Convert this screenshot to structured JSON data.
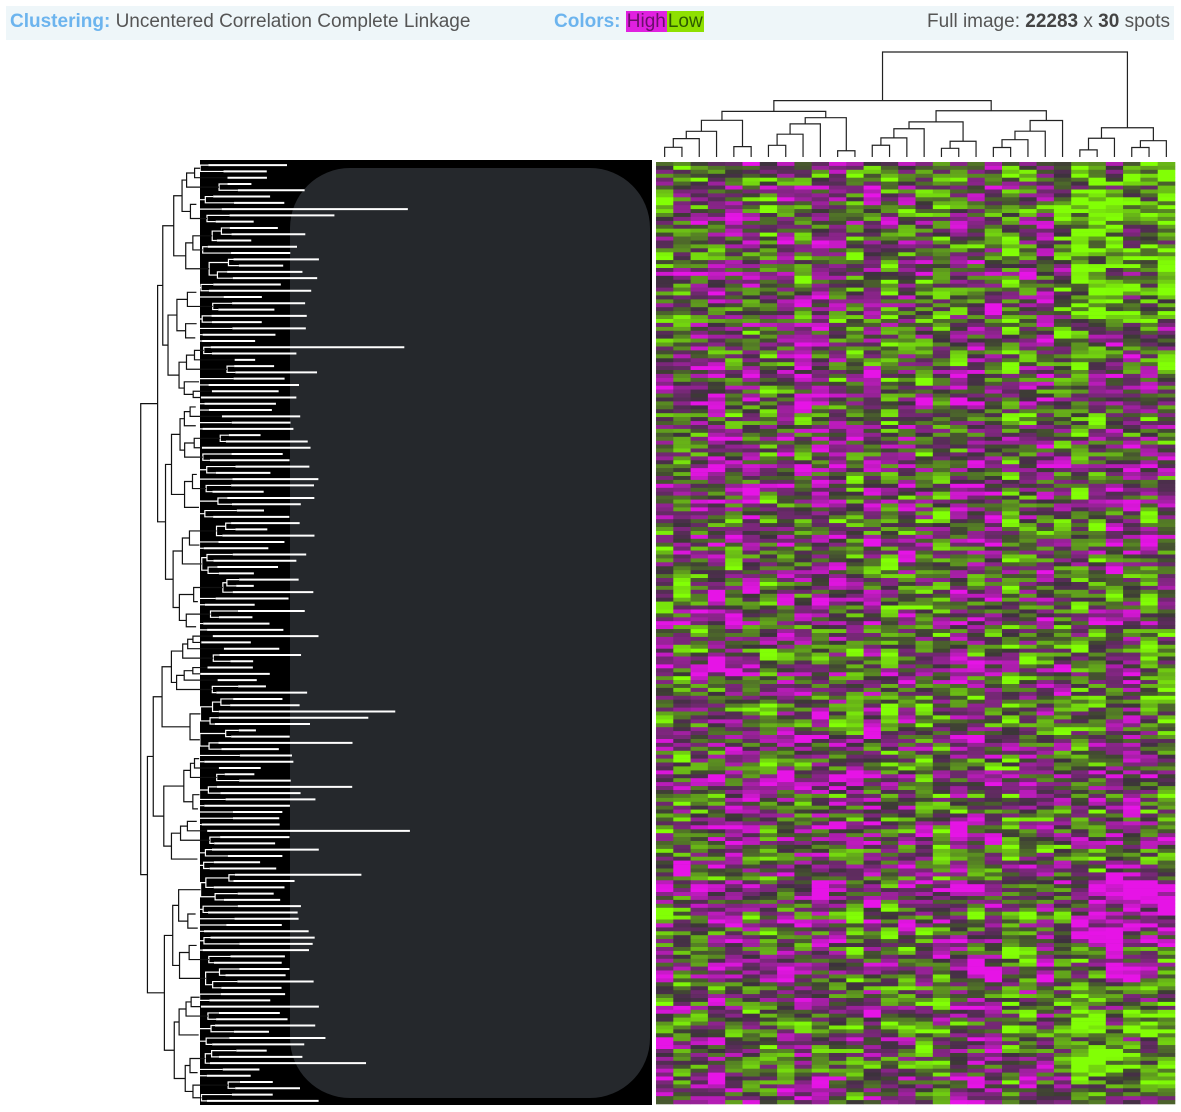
{
  "header": {
    "clustering_label": "Clustering:",
    "clustering_method": "Uncentered Correlation Complete Linkage",
    "colors_label": "Colors:",
    "high_label": "High",
    "low_label": "Low",
    "full_image_label": "Full image:",
    "rows_count": "22283",
    "times": "x",
    "cols_count": "30",
    "spots_label": "spots"
  }
}
